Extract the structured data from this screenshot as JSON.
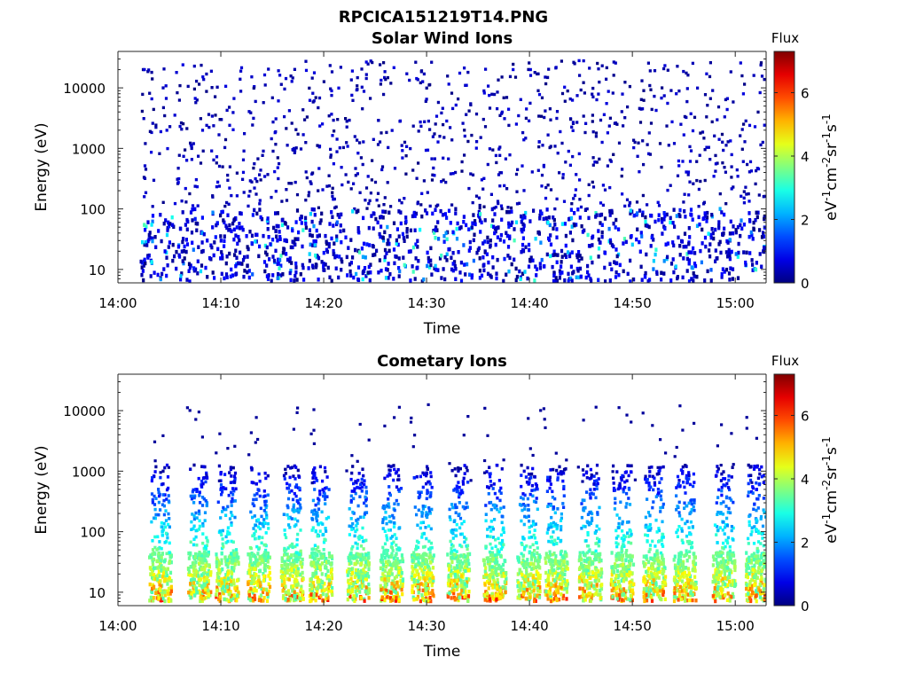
{
  "figure": {
    "title": "RPCICA151219T14.PNG"
  },
  "chart_data": [
    {
      "type": "heatmap",
      "title": "Solar Wind Ions",
      "xlabel": "Time",
      "ylabel": "Energy (eV)",
      "x_ticks": [
        "14:00",
        "14:10",
        "14:20",
        "14:30",
        "14:40",
        "14:50",
        "15:00"
      ],
      "xlim": [
        "14:00",
        "15:03"
      ],
      "y_ticks": [
        "10",
        "100",
        "1000",
        "10000"
      ],
      "ylim": [
        6,
        40000
      ],
      "y_scale": "log",
      "colorbar": {
        "title": "Flux",
        "label": "eV-1cm-2sr-1s-1",
        "ticks": [
          "0",
          "2",
          "4",
          "6"
        ],
        "range": [
          0,
          7.3
        ],
        "colormap": "jet"
      },
      "description": "Sparse low-intensity scatter (mostly flux 0-2) across all energies 10-30000 eV; denser columns at 10-100 eV with occasional green/cyan values near 20-40 eV."
    },
    {
      "type": "heatmap",
      "title": "Cometary Ions",
      "xlabel": "Time",
      "ylabel": "Energy (eV)",
      "x_ticks": [
        "14:00",
        "14:10",
        "14:20",
        "14:30",
        "14:40",
        "14:50",
        "15:00"
      ],
      "xlim": [
        "14:00",
        "15:03"
      ],
      "y_ticks": [
        "10",
        "100",
        "1000",
        "10000"
      ],
      "ylim": [
        6,
        40000
      ],
      "y_scale": "log",
      "colorbar": {
        "title": "Flux",
        "label": "eV-1cm-2sr-1s-1",
        "ticks": [
          "0",
          "2",
          "4",
          "6"
        ],
        "range": [
          0,
          7.3
        ],
        "colormap": "jet"
      },
      "bursts_minutes": [
        4.0,
        7.8,
        10.5,
        13.6,
        16.8,
        19.6,
        23.2,
        26.5,
        29.5,
        33.0,
        36.5,
        39.8,
        42.5,
        45.8,
        48.9,
        52.0,
        55.0,
        58.8,
        62.0
      ],
      "description": "Periodic vertical bursts of ions: high flux (orange/red, 5-6.5) at 10-40 eV, decaying to cyan/blue up to ~1000-3000 eV, sparse points above."
    }
  ]
}
